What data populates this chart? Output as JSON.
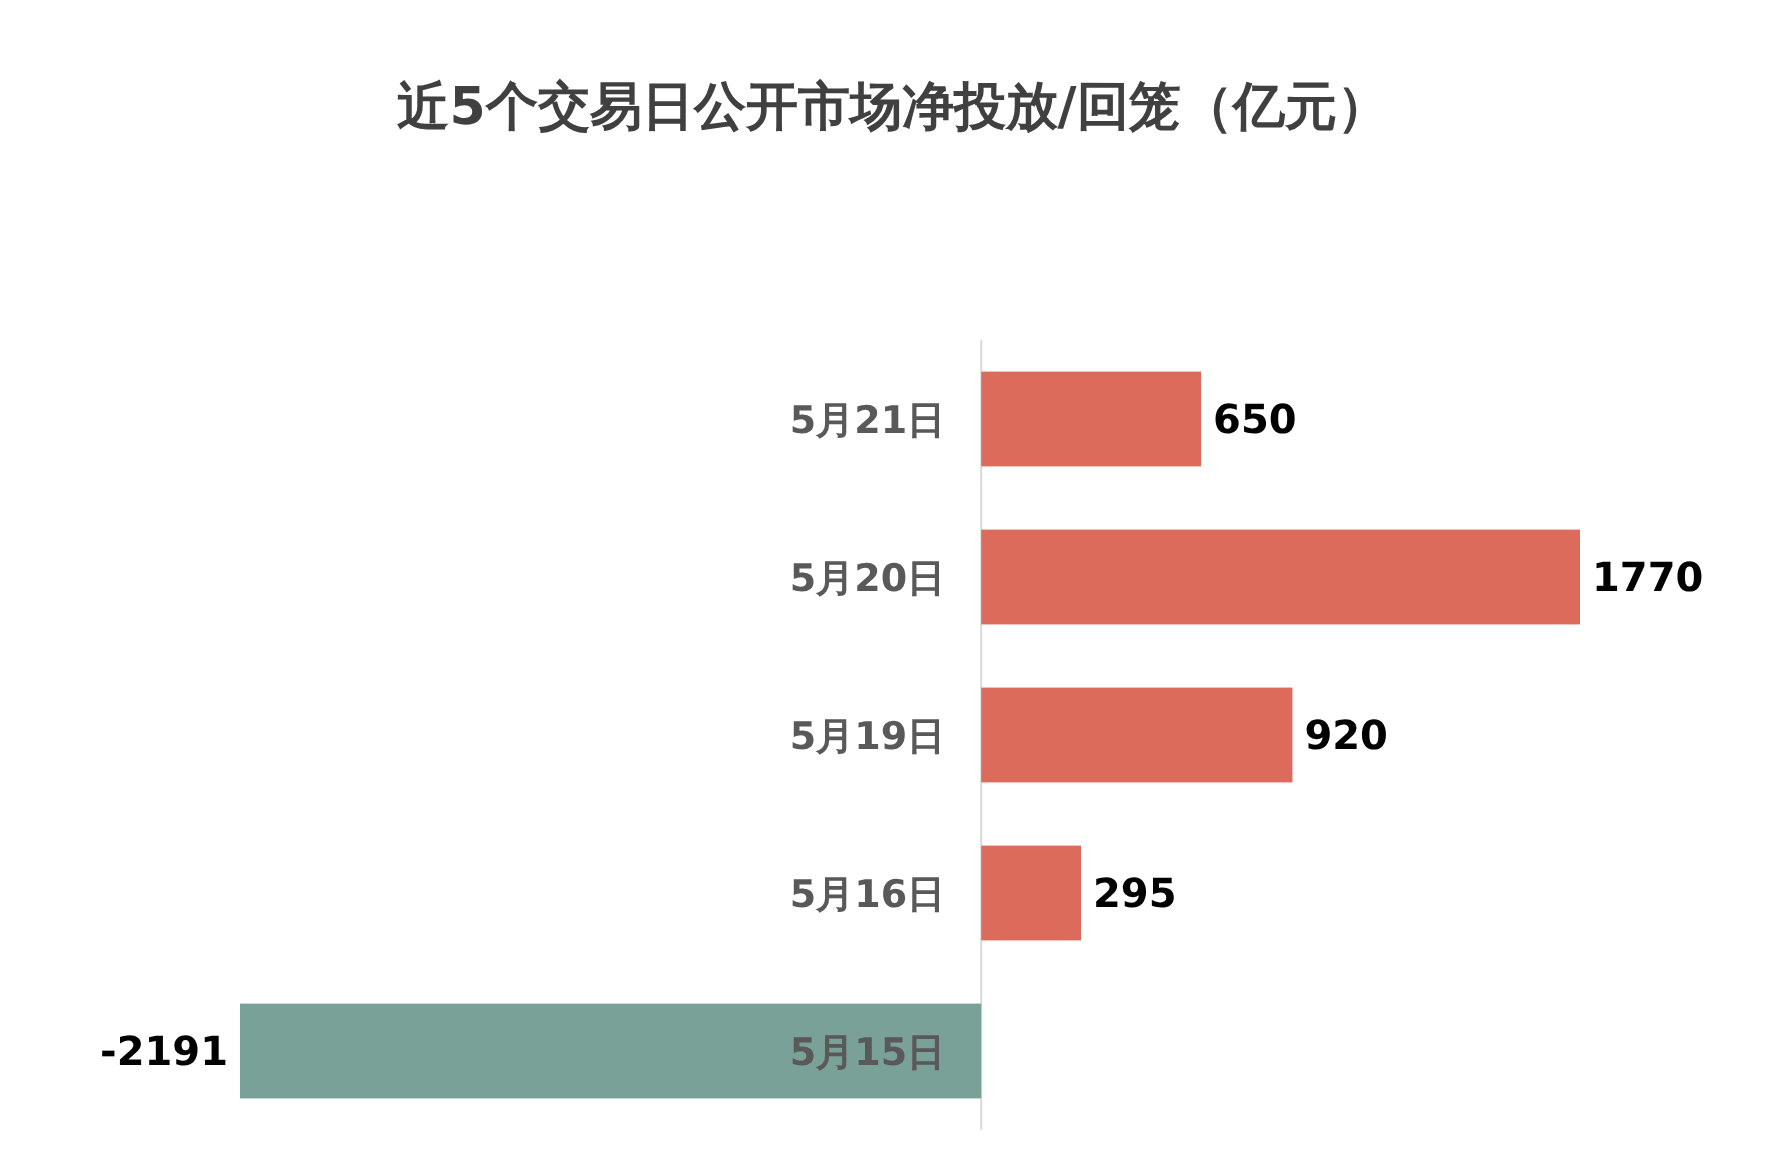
{
  "chart_data": {
    "type": "bar",
    "orientation": "horizontal",
    "title": "近5个交易日公开市场净投放/回笼（亿元）",
    "categories": [
      "5月21日",
      "5月20日",
      "5月19日",
      "5月16日",
      "5月15日"
    ],
    "values": [
      650,
      1770,
      920,
      295,
      -2191
    ],
    "colors": [
      "#dc6b5c",
      "#dc6b5c",
      "#dc6b5c",
      "#dc6b5c",
      "#7aa197"
    ],
    "data_labels": true
  }
}
